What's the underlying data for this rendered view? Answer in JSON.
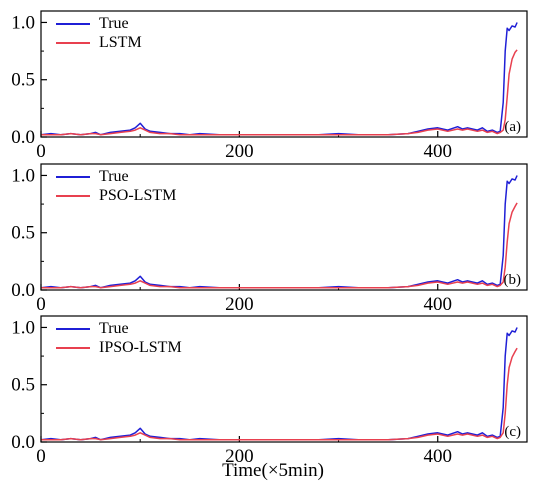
{
  "colors": {
    "true_series": "#1f1fd6",
    "model_series": "#e8404f",
    "axis": "#000000"
  },
  "xlabel": "Time(×5min)",
  "chart_data": [
    {
      "type": "line",
      "panel_label": "(a)",
      "xlim": [
        0,
        490
      ],
      "ylim": [
        0,
        1.1
      ],
      "xticks": [
        0,
        200,
        400
      ],
      "yticks": [
        "0.0",
        "0.5",
        "1.0"
      ],
      "legend": {
        "placement": "top-left",
        "entries": [
          "True",
          "LSTM"
        ]
      },
      "series": [
        {
          "name": "True",
          "color": "#1f1fd6",
          "x": [
            0,
            10,
            20,
            30,
            40,
            50,
            55,
            60,
            70,
            80,
            90,
            95,
            100,
            105,
            110,
            120,
            130,
            140,
            150,
            160,
            180,
            200,
            220,
            250,
            280,
            300,
            320,
            350,
            370,
            380,
            390,
            400,
            410,
            420,
            425,
            430,
            440,
            445,
            450,
            455,
            460,
            463,
            466,
            468,
            470,
            472,
            475,
            478,
            480
          ],
          "y": [
            0.02,
            0.03,
            0.02,
            0.03,
            0.02,
            0.03,
            0.04,
            0.02,
            0.04,
            0.05,
            0.06,
            0.08,
            0.12,
            0.07,
            0.05,
            0.04,
            0.03,
            0.03,
            0.02,
            0.03,
            0.02,
            0.02,
            0.02,
            0.02,
            0.02,
            0.03,
            0.02,
            0.02,
            0.03,
            0.05,
            0.07,
            0.08,
            0.06,
            0.09,
            0.07,
            0.08,
            0.06,
            0.08,
            0.05,
            0.06,
            0.04,
            0.05,
            0.3,
            0.75,
            0.95,
            0.93,
            0.97,
            0.96,
            1.0
          ]
        },
        {
          "name": "LSTM",
          "color": "#e8404f",
          "x": [
            0,
            10,
            20,
            30,
            40,
            50,
            55,
            60,
            70,
            80,
            90,
            95,
            100,
            105,
            110,
            120,
            130,
            140,
            150,
            160,
            180,
            200,
            220,
            250,
            280,
            300,
            320,
            350,
            370,
            380,
            390,
            400,
            410,
            420,
            425,
            430,
            440,
            445,
            450,
            455,
            460,
            463,
            466,
            468,
            470,
            472,
            475,
            478,
            480
          ],
          "y": [
            0.02,
            0.02,
            0.02,
            0.03,
            0.02,
            0.03,
            0.03,
            0.02,
            0.03,
            0.04,
            0.05,
            0.06,
            0.08,
            0.06,
            0.04,
            0.03,
            0.03,
            0.02,
            0.02,
            0.02,
            0.02,
            0.02,
            0.02,
            0.02,
            0.02,
            0.02,
            0.02,
            0.02,
            0.03,
            0.04,
            0.06,
            0.07,
            0.05,
            0.07,
            0.06,
            0.07,
            0.05,
            0.06,
            0.04,
            0.05,
            0.03,
            0.04,
            0.06,
            0.15,
            0.35,
            0.55,
            0.68,
            0.74,
            0.76
          ]
        }
      ]
    },
    {
      "type": "line",
      "panel_label": "(b)",
      "xlim": [
        0,
        490
      ],
      "ylim": [
        0,
        1.1
      ],
      "xticks": [
        0,
        200,
        400
      ],
      "yticks": [
        "0.0",
        "0.5",
        "1.0"
      ],
      "legend": {
        "placement": "top-left",
        "entries": [
          "True",
          "PSO-LSTM"
        ]
      },
      "series": [
        {
          "name": "True",
          "color": "#1f1fd6",
          "x": [
            0,
            10,
            20,
            30,
            40,
            50,
            55,
            60,
            70,
            80,
            90,
            95,
            100,
            105,
            110,
            120,
            130,
            140,
            150,
            160,
            180,
            200,
            220,
            250,
            280,
            300,
            320,
            350,
            370,
            380,
            390,
            400,
            410,
            420,
            425,
            430,
            440,
            445,
            450,
            455,
            460,
            463,
            466,
            468,
            470,
            472,
            475,
            478,
            480
          ],
          "y": [
            0.02,
            0.03,
            0.02,
            0.03,
            0.02,
            0.03,
            0.04,
            0.02,
            0.04,
            0.05,
            0.06,
            0.08,
            0.12,
            0.07,
            0.05,
            0.04,
            0.03,
            0.03,
            0.02,
            0.03,
            0.02,
            0.02,
            0.02,
            0.02,
            0.02,
            0.03,
            0.02,
            0.02,
            0.03,
            0.05,
            0.07,
            0.08,
            0.06,
            0.09,
            0.07,
            0.08,
            0.06,
            0.08,
            0.05,
            0.06,
            0.04,
            0.05,
            0.3,
            0.75,
            0.95,
            0.93,
            0.97,
            0.96,
            1.0
          ]
        },
        {
          "name": "PSO-LSTM",
          "color": "#e8404f",
          "x": [
            0,
            10,
            20,
            30,
            40,
            50,
            55,
            60,
            70,
            80,
            90,
            95,
            100,
            105,
            110,
            120,
            130,
            140,
            150,
            160,
            180,
            200,
            220,
            250,
            280,
            300,
            320,
            350,
            370,
            380,
            390,
            400,
            410,
            420,
            425,
            430,
            440,
            445,
            450,
            455,
            460,
            463,
            466,
            468,
            470,
            472,
            475,
            478,
            480
          ],
          "y": [
            0.02,
            0.02,
            0.02,
            0.03,
            0.02,
            0.03,
            0.03,
            0.02,
            0.03,
            0.04,
            0.05,
            0.06,
            0.08,
            0.06,
            0.04,
            0.03,
            0.03,
            0.02,
            0.02,
            0.02,
            0.02,
            0.02,
            0.02,
            0.02,
            0.02,
            0.02,
            0.02,
            0.02,
            0.03,
            0.04,
            0.06,
            0.07,
            0.05,
            0.07,
            0.06,
            0.07,
            0.05,
            0.06,
            0.04,
            0.05,
            0.03,
            0.04,
            0.07,
            0.2,
            0.42,
            0.58,
            0.68,
            0.73,
            0.76
          ]
        }
      ]
    },
    {
      "type": "line",
      "panel_label": "(c)",
      "xlim": [
        0,
        490
      ],
      "ylim": [
        0,
        1.1
      ],
      "xticks": [
        0,
        200,
        400
      ],
      "yticks": [
        "0.0",
        "0.5",
        "1.0"
      ],
      "legend": {
        "placement": "top-left",
        "entries": [
          "True",
          "IPSO-LSTM"
        ]
      },
      "series": [
        {
          "name": "True",
          "color": "#1f1fd6",
          "x": [
            0,
            10,
            20,
            30,
            40,
            50,
            55,
            60,
            70,
            80,
            90,
            95,
            100,
            105,
            110,
            120,
            130,
            140,
            150,
            160,
            180,
            200,
            220,
            250,
            280,
            300,
            320,
            350,
            370,
            380,
            390,
            400,
            410,
            420,
            425,
            430,
            440,
            445,
            450,
            455,
            460,
            463,
            466,
            468,
            470,
            472,
            475,
            478,
            480
          ],
          "y": [
            0.02,
            0.03,
            0.02,
            0.03,
            0.02,
            0.03,
            0.04,
            0.02,
            0.04,
            0.05,
            0.06,
            0.08,
            0.12,
            0.07,
            0.05,
            0.04,
            0.03,
            0.03,
            0.02,
            0.03,
            0.02,
            0.02,
            0.02,
            0.02,
            0.02,
            0.03,
            0.02,
            0.02,
            0.03,
            0.05,
            0.07,
            0.08,
            0.06,
            0.09,
            0.07,
            0.08,
            0.06,
            0.08,
            0.05,
            0.06,
            0.04,
            0.05,
            0.3,
            0.75,
            0.95,
            0.93,
            0.97,
            0.96,
            1.0
          ]
        },
        {
          "name": "IPSO-LSTM",
          "color": "#e8404f",
          "x": [
            0,
            10,
            20,
            30,
            40,
            50,
            55,
            60,
            70,
            80,
            90,
            95,
            100,
            105,
            110,
            120,
            130,
            140,
            150,
            160,
            180,
            200,
            220,
            250,
            280,
            300,
            320,
            350,
            370,
            380,
            390,
            400,
            410,
            420,
            425,
            430,
            440,
            445,
            450,
            455,
            460,
            463,
            466,
            468,
            470,
            472,
            475,
            478,
            480
          ],
          "y": [
            0.02,
            0.02,
            0.02,
            0.03,
            0.02,
            0.03,
            0.03,
            0.02,
            0.03,
            0.04,
            0.05,
            0.06,
            0.08,
            0.06,
            0.04,
            0.03,
            0.03,
            0.02,
            0.02,
            0.02,
            0.02,
            0.02,
            0.02,
            0.02,
            0.02,
            0.02,
            0.02,
            0.02,
            0.03,
            0.04,
            0.06,
            0.07,
            0.05,
            0.07,
            0.06,
            0.07,
            0.05,
            0.06,
            0.04,
            0.05,
            0.03,
            0.04,
            0.08,
            0.25,
            0.5,
            0.65,
            0.74,
            0.79,
            0.82
          ]
        }
      ]
    }
  ]
}
